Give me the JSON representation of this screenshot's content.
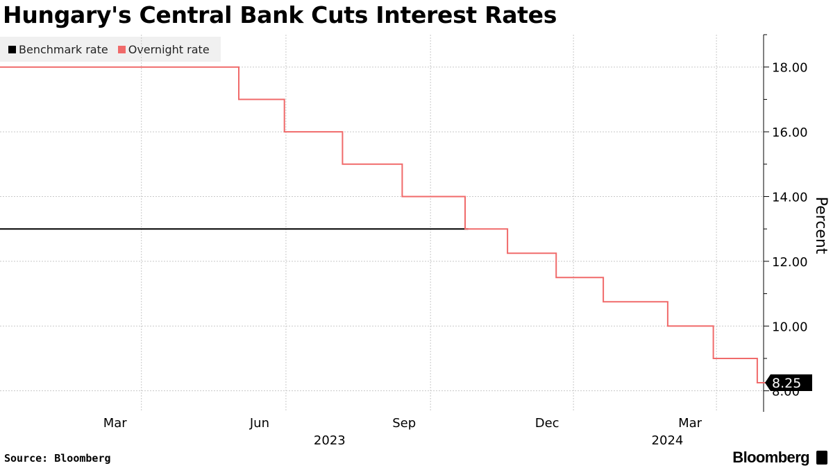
{
  "title": "Hungary's Central Bank Cuts Interest Rates",
  "source": "Source: Bloomberg",
  "brand": "Bloomberg",
  "legend": [
    {
      "label": "Benchmark rate",
      "color": "#000000"
    },
    {
      "label": "Overnight rate",
      "color": "#f06a6a"
    }
  ],
  "chart_data": {
    "type": "line",
    "ylabel": "Percent",
    "ylim": [
      7.35,
      19
    ],
    "xlim": [
      "2022-12-01",
      "2024-03-31"
    ],
    "yticks": [
      "8.00",
      "10.00",
      "12.00",
      "14.00",
      "16.00",
      "18.00"
    ],
    "xticks": [
      {
        "label": "Mar",
        "date": "2023-03-01"
      },
      {
        "label": "Jun",
        "date": "2023-06-01"
      },
      {
        "label": "Sep",
        "date": "2023-09-01"
      },
      {
        "label": "Dec",
        "date": "2023-12-01"
      },
      {
        "label": "Mar",
        "date": "2024-03-01"
      }
    ],
    "year_labels": [
      {
        "label": "2023",
        "date": "2023-07-01"
      },
      {
        "label": "2024",
        "date": "2024-02-01"
      }
    ],
    "grid": true,
    "last_value_label": "8.25",
    "series": [
      {
        "name": "Benchmark rate",
        "color": "#000000",
        "points": [
          [
            "2022-12-01",
            13.0
          ],
          [
            "2023-09-25",
            13.0
          ]
        ]
      },
      {
        "name": "Overnight rate",
        "color": "#f06a6a",
        "points": [
          [
            "2022-12-01",
            18.0
          ],
          [
            "2023-05-02",
            18.0
          ],
          [
            "2023-05-02",
            17.0
          ],
          [
            "2023-05-31",
            17.0
          ],
          [
            "2023-05-31",
            16.0
          ],
          [
            "2023-07-07",
            16.0
          ],
          [
            "2023-07-07",
            15.0
          ],
          [
            "2023-08-14",
            15.0
          ],
          [
            "2023-08-14",
            14.0
          ],
          [
            "2023-09-23",
            14.0
          ],
          [
            "2023-09-23",
            13.0
          ],
          [
            "2023-10-20",
            13.0
          ],
          [
            "2023-10-20",
            12.25
          ],
          [
            "2023-11-20",
            12.25
          ],
          [
            "2023-11-20",
            11.5
          ],
          [
            "2023-12-20",
            11.5
          ],
          [
            "2023-12-20",
            10.75
          ],
          [
            "2024-01-30",
            10.75
          ],
          [
            "2024-01-30",
            10.0
          ],
          [
            "2024-02-28",
            10.0
          ],
          [
            "2024-02-28",
            9.0
          ],
          [
            "2024-03-27",
            9.0
          ],
          [
            "2024-03-27",
            8.25
          ],
          [
            "2024-04-10",
            8.25
          ]
        ]
      }
    ]
  }
}
